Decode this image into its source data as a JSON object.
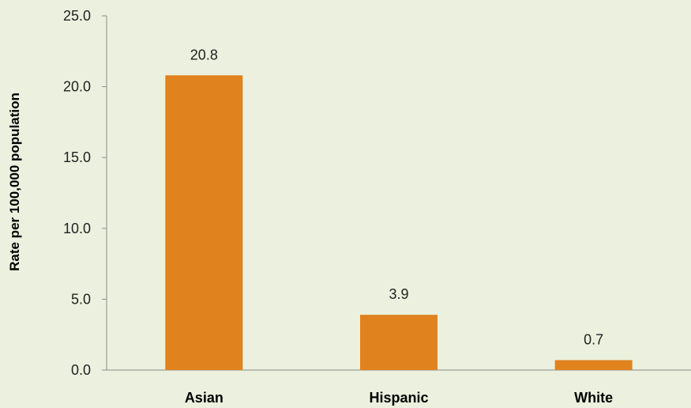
{
  "chart_data": {
    "type": "bar",
    "title": "",
    "xlabel": "",
    "ylabel": "Rate per 100,000 population",
    "categories": [
      "Asian",
      "Hispanic",
      "White"
    ],
    "values": [
      20.8,
      3.9,
      0.7
    ],
    "data_labels": [
      "20.8",
      "3.9",
      "0.7"
    ],
    "ylim": [
      0,
      25
    ],
    "yticks": [
      0,
      5,
      10,
      15,
      20,
      25
    ],
    "ytick_labels": [
      "0.0",
      "5.0",
      "10.0",
      "15.0",
      "20.0",
      "25.0"
    ],
    "grid": false,
    "legend": "none"
  },
  "colors": {
    "background": "#ebf1de",
    "bar": "#e0821e",
    "axis": "#8c8c8c"
  }
}
